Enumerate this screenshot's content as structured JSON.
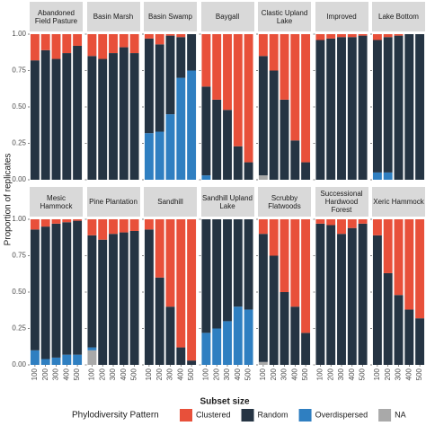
{
  "chart_data": {
    "type": "faceted_stacked_bar",
    "y_label": "Proportion of replicates",
    "x_label": "Subset size",
    "legend_title": "Phylodiversity Pattern",
    "categories": [
      100,
      200,
      300,
      400,
      500
    ],
    "ylim": [
      0,
      1
    ],
    "yticks": [
      {
        "value": 0,
        "label": "0.00"
      },
      {
        "value": 0.25,
        "label": "0.25"
      },
      {
        "value": 0.5,
        "label": "0.50"
      },
      {
        "value": 0.75,
        "label": "0.75"
      },
      {
        "value": 1,
        "label": "1.00"
      }
    ],
    "series": [
      {
        "name": "Clustered",
        "color": "#e8503a"
      },
      {
        "name": "Random",
        "color": "#253443"
      },
      {
        "name": "Overdispersed",
        "color": "#2f7fc1"
      },
      {
        "name": "NA",
        "color": "#a9a9a9"
      }
    ],
    "panels": [
      {
        "title": "Abandoned Field Pasture",
        "values": [
          [
            0.18,
            0.11,
            0.17,
            0.13,
            0.08
          ],
          [
            0.82,
            0.89,
            0.83,
            0.87,
            0.92
          ],
          [
            0,
            0,
            0,
            0,
            0
          ],
          [
            0,
            0,
            0,
            0,
            0
          ]
        ]
      },
      {
        "title": "Basin Marsh",
        "values": [
          [
            0.15,
            0.17,
            0.13,
            0.09,
            0.13
          ],
          [
            0.85,
            0.83,
            0.87,
            0.91,
            0.87
          ],
          [
            0,
            0,
            0,
            0,
            0
          ],
          [
            0,
            0,
            0,
            0,
            0
          ]
        ]
      },
      {
        "title": "Basin Swamp",
        "values": [
          [
            0.03,
            0.07,
            0.01,
            0.02,
            0
          ],
          [
            0.65,
            0.6,
            0.54,
            0.28,
            0.25
          ],
          [
            0.32,
            0.33,
            0.45,
            0.7,
            0.75
          ],
          [
            0,
            0,
            0,
            0,
            0
          ]
        ]
      },
      {
        "title": "Baygall",
        "values": [
          [
            0.36,
            0.45,
            0.52,
            0.77,
            0.88
          ],
          [
            0.61,
            0.55,
            0.48,
            0.23,
            0.12
          ],
          [
            0.03,
            0,
            0,
            0,
            0
          ],
          [
            0,
            0,
            0,
            0,
            0
          ]
        ]
      },
      {
        "title": "Clastic Upland Lake",
        "values": [
          [
            0.15,
            0.25,
            0.45,
            0.73,
            0.88
          ],
          [
            0.82,
            0.75,
            0.55,
            0.27,
            0.12
          ],
          [
            0,
            0,
            0,
            0,
            0
          ],
          [
            0.03,
            0,
            0,
            0,
            0
          ]
        ]
      },
      {
        "title": "Improved",
        "values": [
          [
            0.04,
            0.03,
            0.02,
            0.02,
            0.01
          ],
          [
            0.96,
            0.97,
            0.98,
            0.98,
            0.99
          ],
          [
            0,
            0,
            0,
            0,
            0
          ],
          [
            0,
            0,
            0,
            0,
            0
          ]
        ]
      },
      {
        "title": "Lake Bottom",
        "values": [
          [
            0.04,
            0.02,
            0.01,
            0,
            0
          ],
          [
            0.91,
            0.93,
            0.99,
            1,
            1
          ],
          [
            0.05,
            0.05,
            0,
            0,
            0
          ],
          [
            0,
            0,
            0,
            0,
            0
          ]
        ]
      },
      {
        "title": "Mesic Hammock",
        "values": [
          [
            0.07,
            0.05,
            0.03,
            0.02,
            0.01
          ],
          [
            0.83,
            0.91,
            0.92,
            0.91,
            0.92
          ],
          [
            0.1,
            0.04,
            0.05,
            0.07,
            0.07
          ],
          [
            0,
            0,
            0,
            0,
            0
          ]
        ]
      },
      {
        "title": "Pine Plantation",
        "values": [
          [
            0.11,
            0.14,
            0.1,
            0.09,
            0.08
          ],
          [
            0.77,
            0.86,
            0.9,
            0.91,
            0.92
          ],
          [
            0.02,
            0,
            0,
            0,
            0
          ],
          [
            0.1,
            0,
            0,
            0,
            0
          ]
        ]
      },
      {
        "title": "Sandhill",
        "values": [
          [
            0.07,
            0.4,
            0.6,
            0.88,
            0.97
          ],
          [
            0.93,
            0.6,
            0.4,
            0.12,
            0.03
          ],
          [
            0,
            0,
            0,
            0,
            0
          ],
          [
            0,
            0,
            0,
            0,
            0
          ]
        ]
      },
      {
        "title": "Sandhill Upland Lake",
        "values": [
          [
            0,
            0,
            0,
            0,
            0
          ],
          [
            0.78,
            0.75,
            0.7,
            0.6,
            0.62
          ],
          [
            0.22,
            0.25,
            0.3,
            0.4,
            0.38
          ],
          [
            0,
            0,
            0,
            0,
            0
          ]
        ]
      },
      {
        "title": "Scrubby Flatwoods",
        "values": [
          [
            0.1,
            0.25,
            0.5,
            0.6,
            0.78
          ],
          [
            0.88,
            0.75,
            0.5,
            0.4,
            0.22
          ],
          [
            0,
            0,
            0,
            0,
            0
          ],
          [
            0.02,
            0,
            0,
            0,
            0
          ]
        ]
      },
      {
        "title": "Successional Hardwood Forest",
        "values": [
          [
            0.03,
            0.04,
            0.1,
            0.06,
            0.03
          ],
          [
            0.97,
            0.96,
            0.9,
            0.94,
            0.97
          ],
          [
            0,
            0,
            0,
            0,
            0
          ],
          [
            0,
            0,
            0,
            0,
            0
          ]
        ]
      },
      {
        "title": "Xeric Hammock",
        "values": [
          [
            0.11,
            0.37,
            0.52,
            0.62,
            0.68
          ],
          [
            0.89,
            0.63,
            0.48,
            0.38,
            0.32
          ],
          [
            0,
            0,
            0,
            0,
            0
          ],
          [
            0,
            0,
            0,
            0,
            0
          ]
        ]
      }
    ]
  }
}
